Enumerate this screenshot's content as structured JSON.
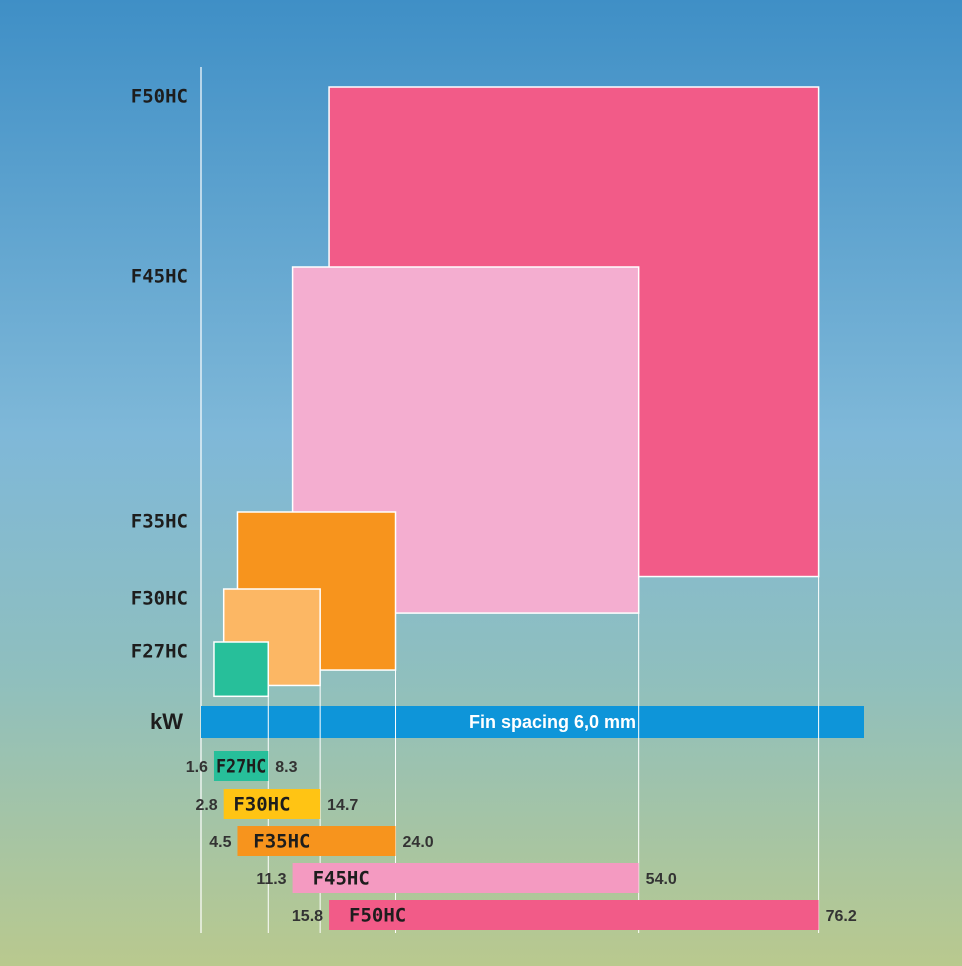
{
  "chart_data": {
    "type": "rangebar",
    "axis_label": "kW",
    "band_label": "Fin spacing 6,0 mm",
    "categories": [
      "F27HC",
      "F30HC",
      "F35HC",
      "F45HC",
      "F50HC"
    ],
    "series": [
      {
        "values": [
          1.6,
          2.8,
          4.5,
          11.3,
          15.8
        ]
      },
      {
        "values": [
          8.3,
          14.7,
          24.0,
          54.0,
          76.2
        ],
        "value_labels": [
          "8.3",
          "14.7",
          "24.0",
          "54.0",
          "76.2"
        ]
      }
    ],
    "colors": [
      "#27bf9a",
      "#ffc414",
      "#f7941d",
      "#f49ac1",
      "#f25b88"
    ],
    "square_colors": [
      "#27bf9a",
      "#fcb764",
      "#f7941d",
      "#f4aed0",
      "#f25b88"
    ],
    "band_color": "#0e95d9",
    "xlim": [
      0,
      81.8
    ]
  }
}
